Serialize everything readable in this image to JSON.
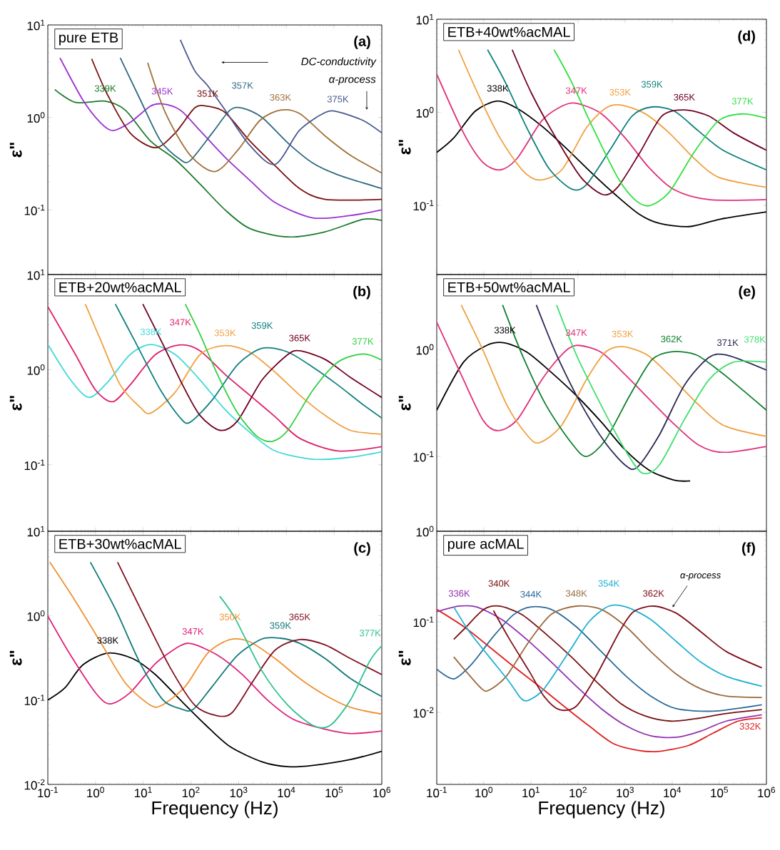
{
  "chart_data": [
    {
      "type": "line",
      "title": "pure ETB",
      "ylabel": "ε\"",
      "log": "xy",
      "tick_labels": "y",
      "xlim": [
        0.1,
        1000000
      ],
      "ylim": [
        0.02,
        10
      ],
      "xticks": [
        {
          "value": 0.1,
          "label": null
        },
        {
          "value": 1,
          "label": null
        },
        {
          "value": 10,
          "label": null
        },
        {
          "value": 100,
          "label": null
        },
        {
          "value": 1000,
          "label": null
        },
        {
          "value": 10000,
          "label": null
        },
        {
          "value": 100000,
          "label": null
        },
        {
          "value": 1000000,
          "label": null
        }
      ],
      "yticks": [
        {
          "value": 0.1,
          "label": "10$^{-1}$"
        },
        {
          "value": 1,
          "label": "10$^{0}$"
        },
        {
          "value": 10,
          "label": "10$^{1}$"
        }
      ],
      "annotations": [
        "(a)",
        "DC-conductivity",
        "α-process"
      ],
      "series": [
        {
          "name": "339K",
          "color": "#1a7a2a",
          "x": [
            0.14,
            0.38,
            1.6,
            4.2,
            14,
            47,
            155,
            520,
            1700,
            10700,
            65000,
            400000,
            1000000
          ],
          "values": [
            2.0,
            1.45,
            1.5,
            1.2,
            0.56,
            0.35,
            0.19,
            0.1,
            0.063,
            0.051,
            0.058,
            0.079,
            0.077
          ]
        },
        {
          "name": "345K",
          "color": "#9b30d0",
          "x": [
            0.18,
            0.54,
            1.26,
            2.3,
            5.3,
            14,
            25,
            60,
            155,
            520,
            1700,
            5800,
            36000,
            220000,
            1000000
          ],
          "values": [
            4.4,
            1.55,
            0.88,
            0.72,
            0.88,
            1.32,
            1.4,
            1.2,
            0.72,
            0.37,
            0.21,
            0.12,
            0.082,
            0.087,
            0.1
          ]
        },
        {
          "name": "351K",
          "color": "#7a1010",
          "x": [
            0.83,
            1.8,
            5.3,
            18,
            47,
            120,
            225,
            520,
            1700,
            5800,
            19000,
            65000,
            1000000
          ],
          "values": [
            4.3,
            1.74,
            0.68,
            0.47,
            0.68,
            1.27,
            1.32,
            1.13,
            0.56,
            0.3,
            0.17,
            0.13,
            0.13
          ]
        },
        {
          "name": "357K",
          "color": "#2e6a80",
          "x": [
            3.3,
            8.7,
            23,
            60,
            96,
            280,
            660,
            1200,
            3100,
            10700,
            36000,
            120000,
            1000000
          ],
          "values": [
            4.4,
            1.55,
            0.56,
            0.35,
            0.34,
            0.68,
            1.2,
            1.26,
            1.0,
            0.53,
            0.32,
            0.24,
            0.17
          ]
        },
        {
          "name": "363K",
          "color": "#a0703a",
          "x": [
            12.4,
            29,
            96,
            320,
            950,
            2800,
            7500,
            19000,
            65000,
            220000,
            1000000
          ],
          "values": [
            3.9,
            1.13,
            0.39,
            0.26,
            0.44,
            0.93,
            1.2,
            1.1,
            0.63,
            0.39,
            0.25
          ]
        },
        {
          "name": "375K",
          "color": "#4a5890",
          "x": [
            60,
            120,
            225,
            520,
            1700,
            5800,
            19000,
            65000,
            120000,
            400000,
            1000000
          ],
          "values": [
            6.9,
            3.2,
            2.2,
            1.2,
            0.5,
            0.31,
            0.73,
            1.13,
            1.15,
            0.93,
            0.68
          ]
        }
      ]
    },
    {
      "type": "line",
      "title": "ETB+20wt%acMAL",
      "ylabel": "ε\"",
      "log": "xy",
      "tick_labels": "y",
      "xlim": [
        0.1,
        1000000
      ],
      "ylim": [
        0.02,
        10
      ],
      "xticks": [
        {
          "value": 0.1,
          "label": null
        },
        {
          "value": 1,
          "label": null
        },
        {
          "value": 10,
          "label": null
        },
        {
          "value": 100,
          "label": null
        },
        {
          "value": 1000,
          "label": null
        },
        {
          "value": 10000,
          "label": null
        },
        {
          "value": 100000,
          "label": null
        },
        {
          "value": 1000000,
          "label": null
        }
      ],
      "yticks": [
        {
          "value": 0.1,
          "label": "10$^{-1}$"
        },
        {
          "value": 1,
          "label": "10$^{0}$"
        },
        {
          "value": 10,
          "label": "10$^{1}$"
        }
      ],
      "annotations": [
        "(b)"
      ],
      "series": [
        {
          "name": "338K",
          "color": "#40d8d8",
          "x": [
            0.1,
            0.3,
            0.73,
            1.8,
            5.3,
            14.5,
            47,
            155,
            520,
            1700,
            5800,
            36000,
            220000,
            1000000
          ],
          "values": [
            1.84,
            0.78,
            0.51,
            0.74,
            1.44,
            1.84,
            1.44,
            0.78,
            0.38,
            0.22,
            0.14,
            0.114,
            0.12,
            0.137
          ]
        },
        {
          "name": "347K",
          "color": "#e0206a",
          "x": [
            0.1,
            0.38,
            1.0,
            2.3,
            5.3,
            18,
            60,
            155,
            520,
            1700,
            5800,
            19000,
            120000,
            1000000
          ],
          "values": [
            4.6,
            1.44,
            0.61,
            0.46,
            0.69,
            1.44,
            1.82,
            1.58,
            0.89,
            0.54,
            0.32,
            0.19,
            0.14,
            0.155
          ]
        },
        {
          "name": "353K",
          "color": "#f0a040",
          "x": [
            0.61,
            1.26,
            3.3,
            8.7,
            14.5,
            47,
            155,
            520,
            1700,
            5800,
            19000,
            65000,
            220000,
            1000000
          ],
          "values": [
            4.9,
            2.08,
            0.69,
            0.4,
            0.35,
            0.58,
            1.44,
            1.79,
            1.53,
            0.94,
            0.54,
            0.33,
            0.23,
            0.21
          ]
        },
        {
          "name": "359K",
          "color": "#108080",
          "x": [
            2.6,
            6.8,
            23,
            60,
            96,
            280,
            950,
            3100,
            10700,
            36000,
            120000,
            400000,
            1000000
          ],
          "values": [
            4.9,
            1.96,
            0.61,
            0.31,
            0.28,
            0.48,
            1.13,
            1.68,
            1.53,
            1.06,
            0.69,
            0.43,
            0.31
          ]
        },
        {
          "name": "365K",
          "color": "#700020",
          "x": [
            9.8,
            26,
            67,
            155,
            410,
            950,
            3100,
            10700,
            19000,
            65000,
            220000,
            1000000
          ],
          "values": [
            4.9,
            1.84,
            0.69,
            0.33,
            0.23,
            0.29,
            0.78,
            1.44,
            1.58,
            1.28,
            0.83,
            0.51
          ]
        },
        {
          "name": "377K",
          "color": "#30d040",
          "x": [
            76,
            155,
            360,
            950,
            2400,
            5000,
            10700,
            36000,
            120000,
            400000,
            1000000
          ],
          "values": [
            4.9,
            2.35,
            0.89,
            0.35,
            0.2,
            0.176,
            0.23,
            0.61,
            1.2,
            1.46,
            1.26
          ]
        }
      ]
    },
    {
      "type": "line",
      "title": "ETB+30wt%acMAL",
      "xlabel": "Frequency (Hz)",
      "ylabel": "ε\"",
      "log": "xy",
      "xlim": [
        0.1,
        1000000
      ],
      "ylim": [
        0.01,
        10
      ],
      "xticks": [
        {
          "value": 0.1,
          "label": "10$^{-1}$"
        },
        {
          "value": 1,
          "label": "10$^{0}$"
        },
        {
          "value": 10,
          "label": "10$^{1}$"
        },
        {
          "value": 100,
          "label": "10$^{2}$"
        },
        {
          "value": 1000,
          "label": "10$^{3}$"
        },
        {
          "value": 10000,
          "label": "10$^{4}$"
        },
        {
          "value": 100000,
          "label": "10$^{5}$"
        },
        {
          "value": 1000000,
          "label": "10$^{6}$"
        }
      ],
      "yticks": [
        {
          "value": 0.01,
          "label": "10$^{-2}$"
        },
        {
          "value": 0.1,
          "label": "10$^{-1}$"
        },
        {
          "value": 1,
          "label": "10$^{0}$"
        },
        {
          "value": 10,
          "label": "10$^{1}$"
        }
      ],
      "annotations": [
        "(c)"
      ],
      "series": [
        {
          "name": "338K",
          "color": "#000000",
          "x": [
            0.1,
            0.23,
            0.54,
            1.8,
            6,
            18,
            60,
            200,
            660,
            3100,
            10700,
            36000,
            220000,
            1000000
          ],
          "values": [
            0.1,
            0.14,
            0.26,
            0.36,
            0.31,
            0.2,
            0.1,
            0.051,
            0.028,
            0.0185,
            0.0162,
            0.0168,
            0.0197,
            0.0247
          ]
        },
        {
          "name": "347K",
          "color": "#e0207a",
          "x": [
            0.1,
            0.3,
            1.0,
            2.0,
            5.3,
            18,
            60,
            110,
            360,
            1200,
            4000,
            14000,
            65000,
            220000,
            1000000
          ],
          "values": [
            0.99,
            0.34,
            0.122,
            0.09,
            0.122,
            0.27,
            0.44,
            0.46,
            0.34,
            0.2,
            0.1,
            0.059,
            0.045,
            0.04,
            0.043
          ]
        },
        {
          "name": "350K",
          "color": "#f09030",
          "x": [
            0.11,
            0.38,
            1.26,
            4.2,
            14,
            25,
            76,
            225,
            660,
            1700,
            5800,
            19000,
            65000,
            220000,
            1000000
          ],
          "values": [
            4.3,
            1.48,
            0.49,
            0.16,
            0.087,
            0.087,
            0.145,
            0.36,
            0.52,
            0.49,
            0.31,
            0.18,
            0.114,
            0.082,
            0.068
          ]
        },
        {
          "name": "359K",
          "color": "#107878",
          "x": [
            0.78,
            2.6,
            8.7,
            26,
            60,
            110,
            280,
            950,
            3100,
            7500,
            19000,
            65000,
            220000,
            1000000
          ],
          "values": [
            4.3,
            1.2,
            0.27,
            0.1,
            0.079,
            0.077,
            0.145,
            0.34,
            0.53,
            0.54,
            0.47,
            0.31,
            0.18,
            0.11
          ]
        },
        {
          "name": "365K",
          "color": "#801020",
          "x": [
            2.9,
            9.8,
            37,
            120,
            360,
            730,
            1900,
            5800,
            19000,
            65000,
            220000,
            1000000
          ],
          "values": [
            4.3,
            1.06,
            0.24,
            0.087,
            0.065,
            0.071,
            0.16,
            0.39,
            0.52,
            0.45,
            0.31,
            0.2
          ]
        },
        {
          "name": "377K",
          "color": "#30c090",
          "x": [
            400,
            850,
            3100,
            10700,
            36000,
            83000,
            220000,
            560000,
            1000000
          ],
          "values": [
            1.7,
            0.92,
            0.22,
            0.087,
            0.05,
            0.05,
            0.1,
            0.29,
            0.44
          ]
        }
      ]
    },
    {
      "type": "line",
      "title": "ETB+40wt%acMAL",
      "ylabel": "ε\"",
      "log": "xy",
      "tick_labels": "y",
      "xlim": [
        0.1,
        1000000
      ],
      "ylim": [
        0.018,
        10
      ],
      "xticks": [
        {
          "value": 0.1,
          "label": null
        },
        {
          "value": 1,
          "label": null
        },
        {
          "value": 10,
          "label": null
        },
        {
          "value": 100,
          "label": null
        },
        {
          "value": 1000,
          "label": null
        },
        {
          "value": 10000,
          "label": null
        },
        {
          "value": 100000,
          "label": null
        },
        {
          "value": 1000000,
          "label": null
        }
      ],
      "yticks": [
        {
          "value": 0.1,
          "label": "10$^{-1}$"
        },
        {
          "value": 1,
          "label": "10$^{0}$"
        },
        {
          "value": 10,
          "label": "10$^{1}$"
        }
      ],
      "annotations": [
        "(d)"
      ],
      "series": [
        {
          "name": "338K",
          "color": "#000000",
          "x": [
            0.1,
            0.23,
            0.66,
            1.97,
            5.1,
            17,
            56,
            190,
            620,
            2000,
            5300,
            23000,
            105000,
            1000000
          ],
          "values": [
            0.37,
            0.53,
            1.03,
            1.32,
            1.1,
            0.71,
            0.41,
            0.225,
            0.13,
            0.08,
            0.064,
            0.059,
            0.071,
            0.085
          ]
        },
        {
          "name": "347K",
          "color": "#e0307a",
          "x": [
            0.1,
            0.37,
            0.95,
            2.2,
            5.1,
            17,
            45,
            92,
            310,
            1000,
            3300,
            11000,
            60000,
            1000000
          ],
          "values": [
            2.57,
            0.6,
            0.29,
            0.24,
            0.32,
            0.81,
            1.16,
            1.25,
            0.97,
            0.53,
            0.25,
            0.147,
            0.115,
            0.115
          ]
        },
        {
          "name": "353K",
          "color": "#f0a040",
          "x": [
            0.29,
            0.75,
            2.2,
            6.5,
            15,
            45,
            150,
            380,
            780,
            2600,
            8600,
            29000,
            96000,
            1000000
          ],
          "values": [
            4.7,
            1.58,
            0.53,
            0.24,
            0.187,
            0.24,
            0.68,
            1.1,
            1.2,
            0.97,
            0.6,
            0.32,
            0.2,
            0.156
          ]
        },
        {
          "name": "359K",
          "color": "#108080",
          "x": [
            1.2,
            2.8,
            8.3,
            24,
            72,
            150,
            500,
            1400,
            3700,
            11000,
            36000,
            120000,
            1000000
          ],
          "values": [
            4.7,
            2.14,
            0.67,
            0.25,
            0.15,
            0.166,
            0.41,
            0.91,
            1.14,
            1.03,
            0.63,
            0.39,
            0.24
          ]
        },
        {
          "name": "365K",
          "color": "#700020",
          "x": [
            4,
            10.4,
            34,
            115,
            340,
            690,
            2000,
            6000,
            18000,
            60000,
            200000,
            1000000
          ],
          "values": [
            4.7,
            1.58,
            0.53,
            0.2,
            0.13,
            0.156,
            0.36,
            0.91,
            1.06,
            0.91,
            0.6,
            0.39
          ]
        },
        {
          "name": "377K",
          "color": "#30e040",
          "x": [
            31,
            72,
            210,
            690,
            1600,
            3300,
            8600,
            29000,
            96000,
            310000,
            1000000
          ],
          "values": [
            4.7,
            2.14,
            0.67,
            0.2,
            0.115,
            0.099,
            0.138,
            0.37,
            0.81,
            0.96,
            0.86
          ]
        }
      ]
    },
    {
      "type": "line",
      "title": "ETB+50wt%acMAL",
      "ylabel": "ε\"",
      "log": "xy",
      "tick_labels": "y",
      "xlim": [
        0.1,
        1000000
      ],
      "ylim": [
        0.02,
        5
      ],
      "xticks": [
        {
          "value": 0.1,
          "label": null
        },
        {
          "value": 1,
          "label": null
        },
        {
          "value": 10,
          "label": null
        },
        {
          "value": 100,
          "label": null
        },
        {
          "value": 1000,
          "label": null
        },
        {
          "value": 10000,
          "label": null
        },
        {
          "value": 100000,
          "label": null
        },
        {
          "value": 1000000,
          "label": null
        }
      ],
      "yticks": [
        {
          "value": 0.1,
          "label": "10$^{-1}$"
        },
        {
          "value": 1,
          "label": "10$^{0}$"
        }
      ],
      "annotations": [
        "(e)"
      ],
      "series": [
        {
          "name": "338K",
          "color": "#000000",
          "x": [
            0.1,
            0.37,
            1.2,
            2.8,
            8.3,
            27,
            92,
            310,
            1000,
            3300,
            11000,
            24000
          ],
          "values": [
            0.27,
            0.76,
            1.1,
            1.15,
            0.94,
            0.61,
            0.37,
            0.21,
            0.115,
            0.074,
            0.06,
            0.059
          ]
        },
        {
          "name": "347K",
          "color": "#e0307a",
          "x": [
            0.1,
            0.33,
            0.95,
            2,
            5.1,
            17,
            45,
            92,
            310,
            1000,
            3300,
            11000,
            36000,
            120000,
            1000000
          ],
          "values": [
            1.79,
            0.58,
            0.22,
            0.174,
            0.22,
            0.52,
            0.89,
            1.09,
            0.94,
            0.58,
            0.34,
            0.2,
            0.128,
            0.109,
            0.124
          ]
        },
        {
          "name": "353K",
          "color": "#f0a040",
          "x": [
            0.33,
            0.95,
            3.1,
            8.3,
            15,
            45,
            150,
            380,
            880,
            2900,
            9600,
            32000,
            120000,
            1000000
          ],
          "values": [
            2.6,
            0.99,
            0.3,
            0.158,
            0.134,
            0.196,
            0.52,
            0.94,
            1.06,
            0.89,
            0.55,
            0.32,
            0.196,
            0.154
          ]
        },
        {
          "name": "362K",
          "color": "#108030",
          "x": [
            2.5,
            6.5,
            21,
            72,
            150,
            380,
            1250,
            3700,
            9600,
            32000,
            110000,
            350000,
            1000000
          ],
          "values": [
            2.6,
            0.89,
            0.3,
            0.134,
            0.1,
            0.142,
            0.37,
            0.8,
            0.95,
            0.89,
            0.61,
            0.4,
            0.27
          ]
        },
        {
          "name": "371K",
          "color": "#2a2a55",
          "x": [
            13,
            35,
            120,
            380,
            1000,
            1800,
            5300,
            18000,
            60000,
            150000,
            1000000
          ],
          "values": [
            2.6,
            0.89,
            0.3,
            0.134,
            0.083,
            0.079,
            0.158,
            0.46,
            0.84,
            0.88,
            0.64
          ]
        },
        {
          "name": "378K",
          "color": "#40e070",
          "x": [
            35,
            92,
            310,
            1000,
            2300,
            5300,
            18000,
            60000,
            200000,
            1000000
          ],
          "values": [
            2.6,
            0.89,
            0.3,
            0.115,
            0.07,
            0.083,
            0.22,
            0.52,
            0.76,
            0.76
          ]
        }
      ]
    },
    {
      "type": "line",
      "title": "pure acMAL",
      "xlabel": "Frequency (Hz)",
      "ylabel": "ε\"",
      "log": "xy",
      "xlim": [
        0.1,
        1000000
      ],
      "ylim": [
        0.0016,
        1
      ],
      "xticks": [
        {
          "value": 0.1,
          "label": "10$^{-1}$"
        },
        {
          "value": 1,
          "label": "10$^{0}$"
        },
        {
          "value": 10,
          "label": "10$^{1}$"
        },
        {
          "value": 100,
          "label": "10$^{2}$"
        },
        {
          "value": 1000,
          "label": "10$^{3}$"
        },
        {
          "value": 10000,
          "label": "10$^{4}$"
        },
        {
          "value": 100000,
          "label": "10$^{5}$"
        },
        {
          "value": 1000000,
          "label": "10$^{6}$"
        }
      ],
      "yticks": [
        {
          "value": 0.01,
          "label": "10$^{-2}$"
        },
        {
          "value": 0.1,
          "label": "10$^{-1}$"
        },
        {
          "value": 1,
          "label": "10$^{0}$"
        }
      ],
      "annotations": [
        "(f)",
        "α-process"
      ],
      "series": [
        {
          "name": "332K",
          "color": "#e02020",
          "x": [
            0.1,
            0.38,
            1.3,
            4.3,
            15,
            50,
            170,
            570,
            1900,
            5000,
            22000,
            74000,
            250000,
            800000
          ],
          "values": [
            0.137,
            0.088,
            0.053,
            0.032,
            0.0194,
            0.0117,
            0.0071,
            0.0045,
            0.0038,
            0.0037,
            0.0043,
            0.0059,
            0.008,
            0.0087
          ]
        },
        {
          "name": "336K",
          "color": "#9030b0",
          "x": [
            0.1,
            0.3,
            0.7,
            2.4,
            8.1,
            27,
            92,
            310,
            1050,
            3500,
            12000,
            40000,
            140000,
            800000
          ],
          "values": [
            0.129,
            0.149,
            0.146,
            0.106,
            0.064,
            0.036,
            0.0194,
            0.011,
            0.0071,
            0.0055,
            0.0053,
            0.0062,
            0.008,
            0.0094
          ]
        },
        {
          "name": "340K",
          "color": "#7a1010",
          "x": [
            0.23,
            0.38,
            1.0,
            2.1,
            6.3,
            21,
            72,
            240,
            810,
            2700,
            9200,
            31000,
            140000,
            800000
          ],
          "values": [
            0.064,
            0.083,
            0.137,
            0.149,
            0.121,
            0.073,
            0.041,
            0.022,
            0.0125,
            0.0091,
            0.008,
            0.0085,
            0.0097,
            0.0107
          ]
        },
        {
          "name": "344K",
          "color": "#2a6a9a",
          "x": [
            0.1,
            0.23,
            0.55,
            1.6,
            4.3,
            10,
            27,
            92,
            310,
            1050,
            3500,
            12000,
            74000,
            800000
          ],
          "values": [
            0.03,
            0.0234,
            0.034,
            0.069,
            0.12,
            0.146,
            0.137,
            0.088,
            0.047,
            0.025,
            0.0151,
            0.011,
            0.0103,
            0.0121
          ]
        },
        {
          "name": "348K",
          "color": "#9a6a40",
          "x": [
            0.23,
            0.38,
            0.9,
            1.3,
            3,
            9.2,
            27,
            92,
            310,
            1050,
            3500,
            12000,
            40000,
            140000,
            800000
          ],
          "values": [
            0.041,
            0.03,
            0.0182,
            0.0176,
            0.025,
            0.061,
            0.121,
            0.149,
            0.137,
            0.088,
            0.047,
            0.0266,
            0.0182,
            0.0151,
            0.0146
          ]
        },
        {
          "name": "354K",
          "color": "#20b0d0",
          "x": [
            0.23,
            0.49,
            1.3,
            3.4,
            6.3,
            9.2,
            19,
            65,
            170,
            450,
            1050,
            3500,
            12000,
            40000,
            140000,
            800000
          ],
          "values": [
            0.146,
            0.078,
            0.041,
            0.022,
            0.0141,
            0.0137,
            0.0182,
            0.047,
            0.1,
            0.149,
            0.146,
            0.106,
            0.061,
            0.036,
            0.025,
            0.0194
          ]
        },
        {
          "name": "362K",
          "color": "#800f1a",
          "x": [
            1.6,
            3.4,
            9.2,
            19,
            40,
            92,
            240,
            760,
            1500,
            4000,
            12000,
            40000,
            140000,
            800000
          ],
          "values": [
            0.133,
            0.066,
            0.0284,
            0.015,
            0.0107,
            0.0117,
            0.025,
            0.078,
            0.129,
            0.149,
            0.125,
            0.078,
            0.047,
            0.031
          ]
        }
      ]
    }
  ]
}
